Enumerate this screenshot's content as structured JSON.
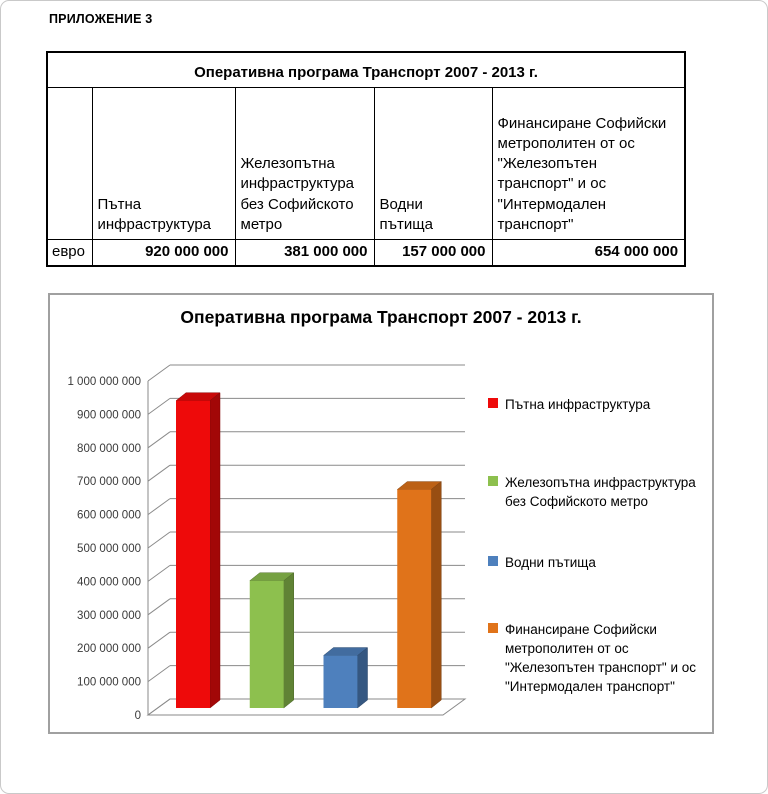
{
  "page": {
    "header": "ПРИЛОЖЕНИЕ 3"
  },
  "table": {
    "title": "Оперативна програма Транспорт 2007 - 2013 г.",
    "row_label": "евро",
    "columns": [
      "Пътна инфраструктура",
      "Железопътна инфраструктура без Софийското метро",
      "Водни пътища",
      "Финансиране Софийски метрополитен от ос \"Железопътен транспорт\" и ос \"Интермодален транспорт\""
    ],
    "values": [
      "920 000 000",
      "381 000 000",
      "157 000 000",
      "654 000 000"
    ]
  },
  "chart_data": {
    "type": "bar",
    "style": "3d-column",
    "title": "Оперативна програма Транспорт 2007 - 2013 г.",
    "categories": [
      "Пътна инфраструктура",
      "Железопътна инфраструктура без Софийското метро",
      "Водни пътища",
      "Финансиране Софийски метрополитен от ос \"Железопътен транспорт\" и ос \"Интермодален транспорт\""
    ],
    "values": [
      920000000,
      381000000,
      157000000,
      654000000
    ],
    "colors": [
      "#ee0a0a",
      "#8dc04e",
      "#4e80bd",
      "#e0731a"
    ],
    "xlabel": "",
    "ylabel": "",
    "ylim": [
      0,
      1000000000
    ],
    "ytick_step": 100000000,
    "grid": true,
    "legend_position": "right",
    "axis_color": "#8a8a8a",
    "tick_label_color": "#3a3a3a"
  }
}
